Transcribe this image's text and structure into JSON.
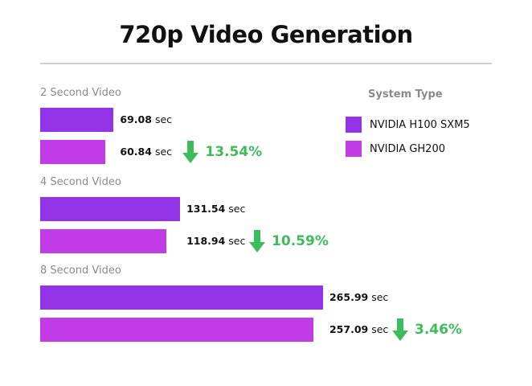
{
  "chart_data": {
    "type": "bar",
    "orientation": "horizontal",
    "title": "720p Video Generation",
    "categories": [
      "2 Second Video",
      "4 Second Video",
      "8 Second Video"
    ],
    "series": [
      {
        "name": "NVIDIA H100 SXM5",
        "color": "#9333e8",
        "values": [
          69.08,
          131.54,
          265.99
        ]
      },
      {
        "name": "NVIDIA GH200",
        "color": "#c13be6",
        "values": [
          60.84,
          118.94,
          257.09
        ]
      }
    ],
    "unit": "sec",
    "improvements": [
      "13.54%",
      "10.59%",
      "3.46%"
    ],
    "improvement_color": "#3dbd5a",
    "legend_title": "System Type",
    "legend_position": "right",
    "xlim": [
      0,
      266
    ]
  }
}
